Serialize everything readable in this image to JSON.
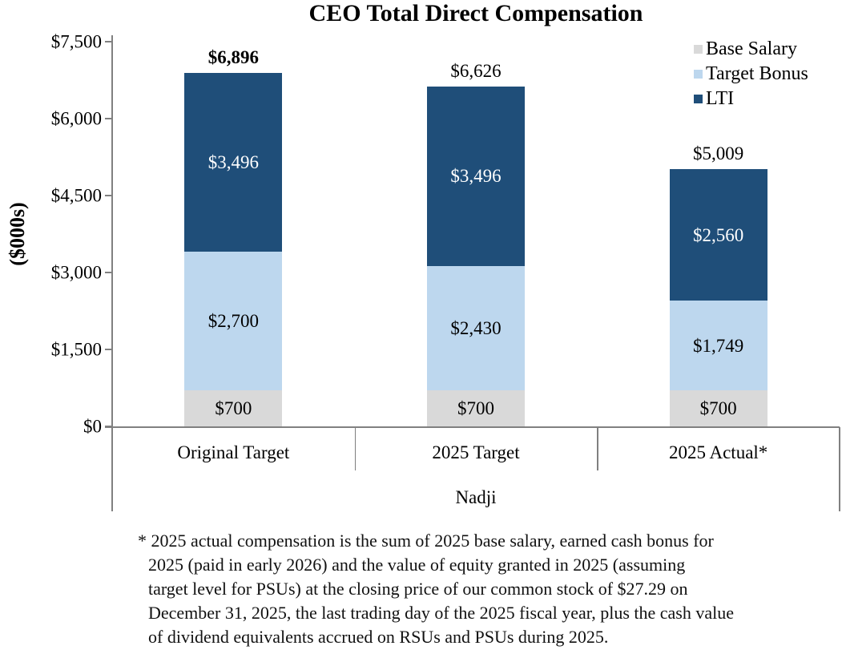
{
  "title": "CEO Total Direct Compensation",
  "y_axis_label": "($000s)",
  "legend": {
    "items": [
      {
        "label": "Base Salary",
        "color": "#D9D9D9"
      },
      {
        "label": "Target Bonus",
        "color": "#BDD7EE"
      },
      {
        "label": "LTI",
        "color": "#1F4E79"
      }
    ],
    "position": "top-right"
  },
  "x_axis": {
    "categories": [
      "Original Target",
      "2025 Target",
      "2025 Actual*"
    ],
    "group_label": "Nadji"
  },
  "footnote_lines": [
    "* 2025 actual compensation is the sum of 2025 base salary, earned cash bonus for",
    "2025 (paid in early 2026) and the value of equity granted in 2025 (assuming",
    "target level for PSUs) at the closing price of our common stock of $27.29 on",
    "December 31, 2025, the last trading day of the 2025 fiscal year, plus the cash value",
    "of dividend equivalents accrued on RSUs and PSUs during 2025."
  ],
  "colors": {
    "base_salary": "#D9D9D9",
    "target_bonus": "#BDD7EE",
    "lti": "#1F4E79",
    "axis_line": "#808080",
    "segment_label_dark": "#000000",
    "segment_label_light": "#FFFFFF"
  },
  "chart_data": {
    "type": "bar",
    "stacked": true,
    "title": "CEO Total Direct Compensation",
    "ylabel": "($000s)",
    "xlabel": "Nadji",
    "ylim": [
      0,
      7500
    ],
    "yticks": [
      0,
      1500,
      3000,
      4500,
      6000,
      7500
    ],
    "ytick_labels": [
      "$0",
      "$1,500",
      "$3,000",
      "$4,500",
      "$6,000",
      "$7,500"
    ],
    "categories": [
      "Original Target",
      "2025 Target",
      "2025 Actual*"
    ],
    "series": [
      {
        "name": "Base Salary",
        "color": "#D9D9D9",
        "label_color": "#000000",
        "values": [
          700,
          700,
          700
        ],
        "value_labels": [
          "$700",
          "$700",
          "$700"
        ]
      },
      {
        "name": "Target Bonus",
        "color": "#BDD7EE",
        "label_color": "#000000",
        "values": [
          2700,
          2430,
          1749
        ],
        "value_labels": [
          "$2,700",
          "$2,430",
          "$1,749"
        ]
      },
      {
        "name": "LTI",
        "color": "#1F4E79",
        "label_color": "#FFFFFF",
        "values": [
          3496,
          3496,
          2560
        ],
        "value_labels": [
          "$3,496",
          "$3,496",
          "$2,560"
        ]
      }
    ],
    "totals": [
      {
        "value": 6896,
        "label": "$6,896",
        "bold": true
      },
      {
        "value": 6626,
        "label": "$6,626",
        "bold": false
      },
      {
        "value": 5009,
        "label": "$5,009",
        "bold": false
      }
    ],
    "legend_position": "top-right",
    "grid": false
  }
}
